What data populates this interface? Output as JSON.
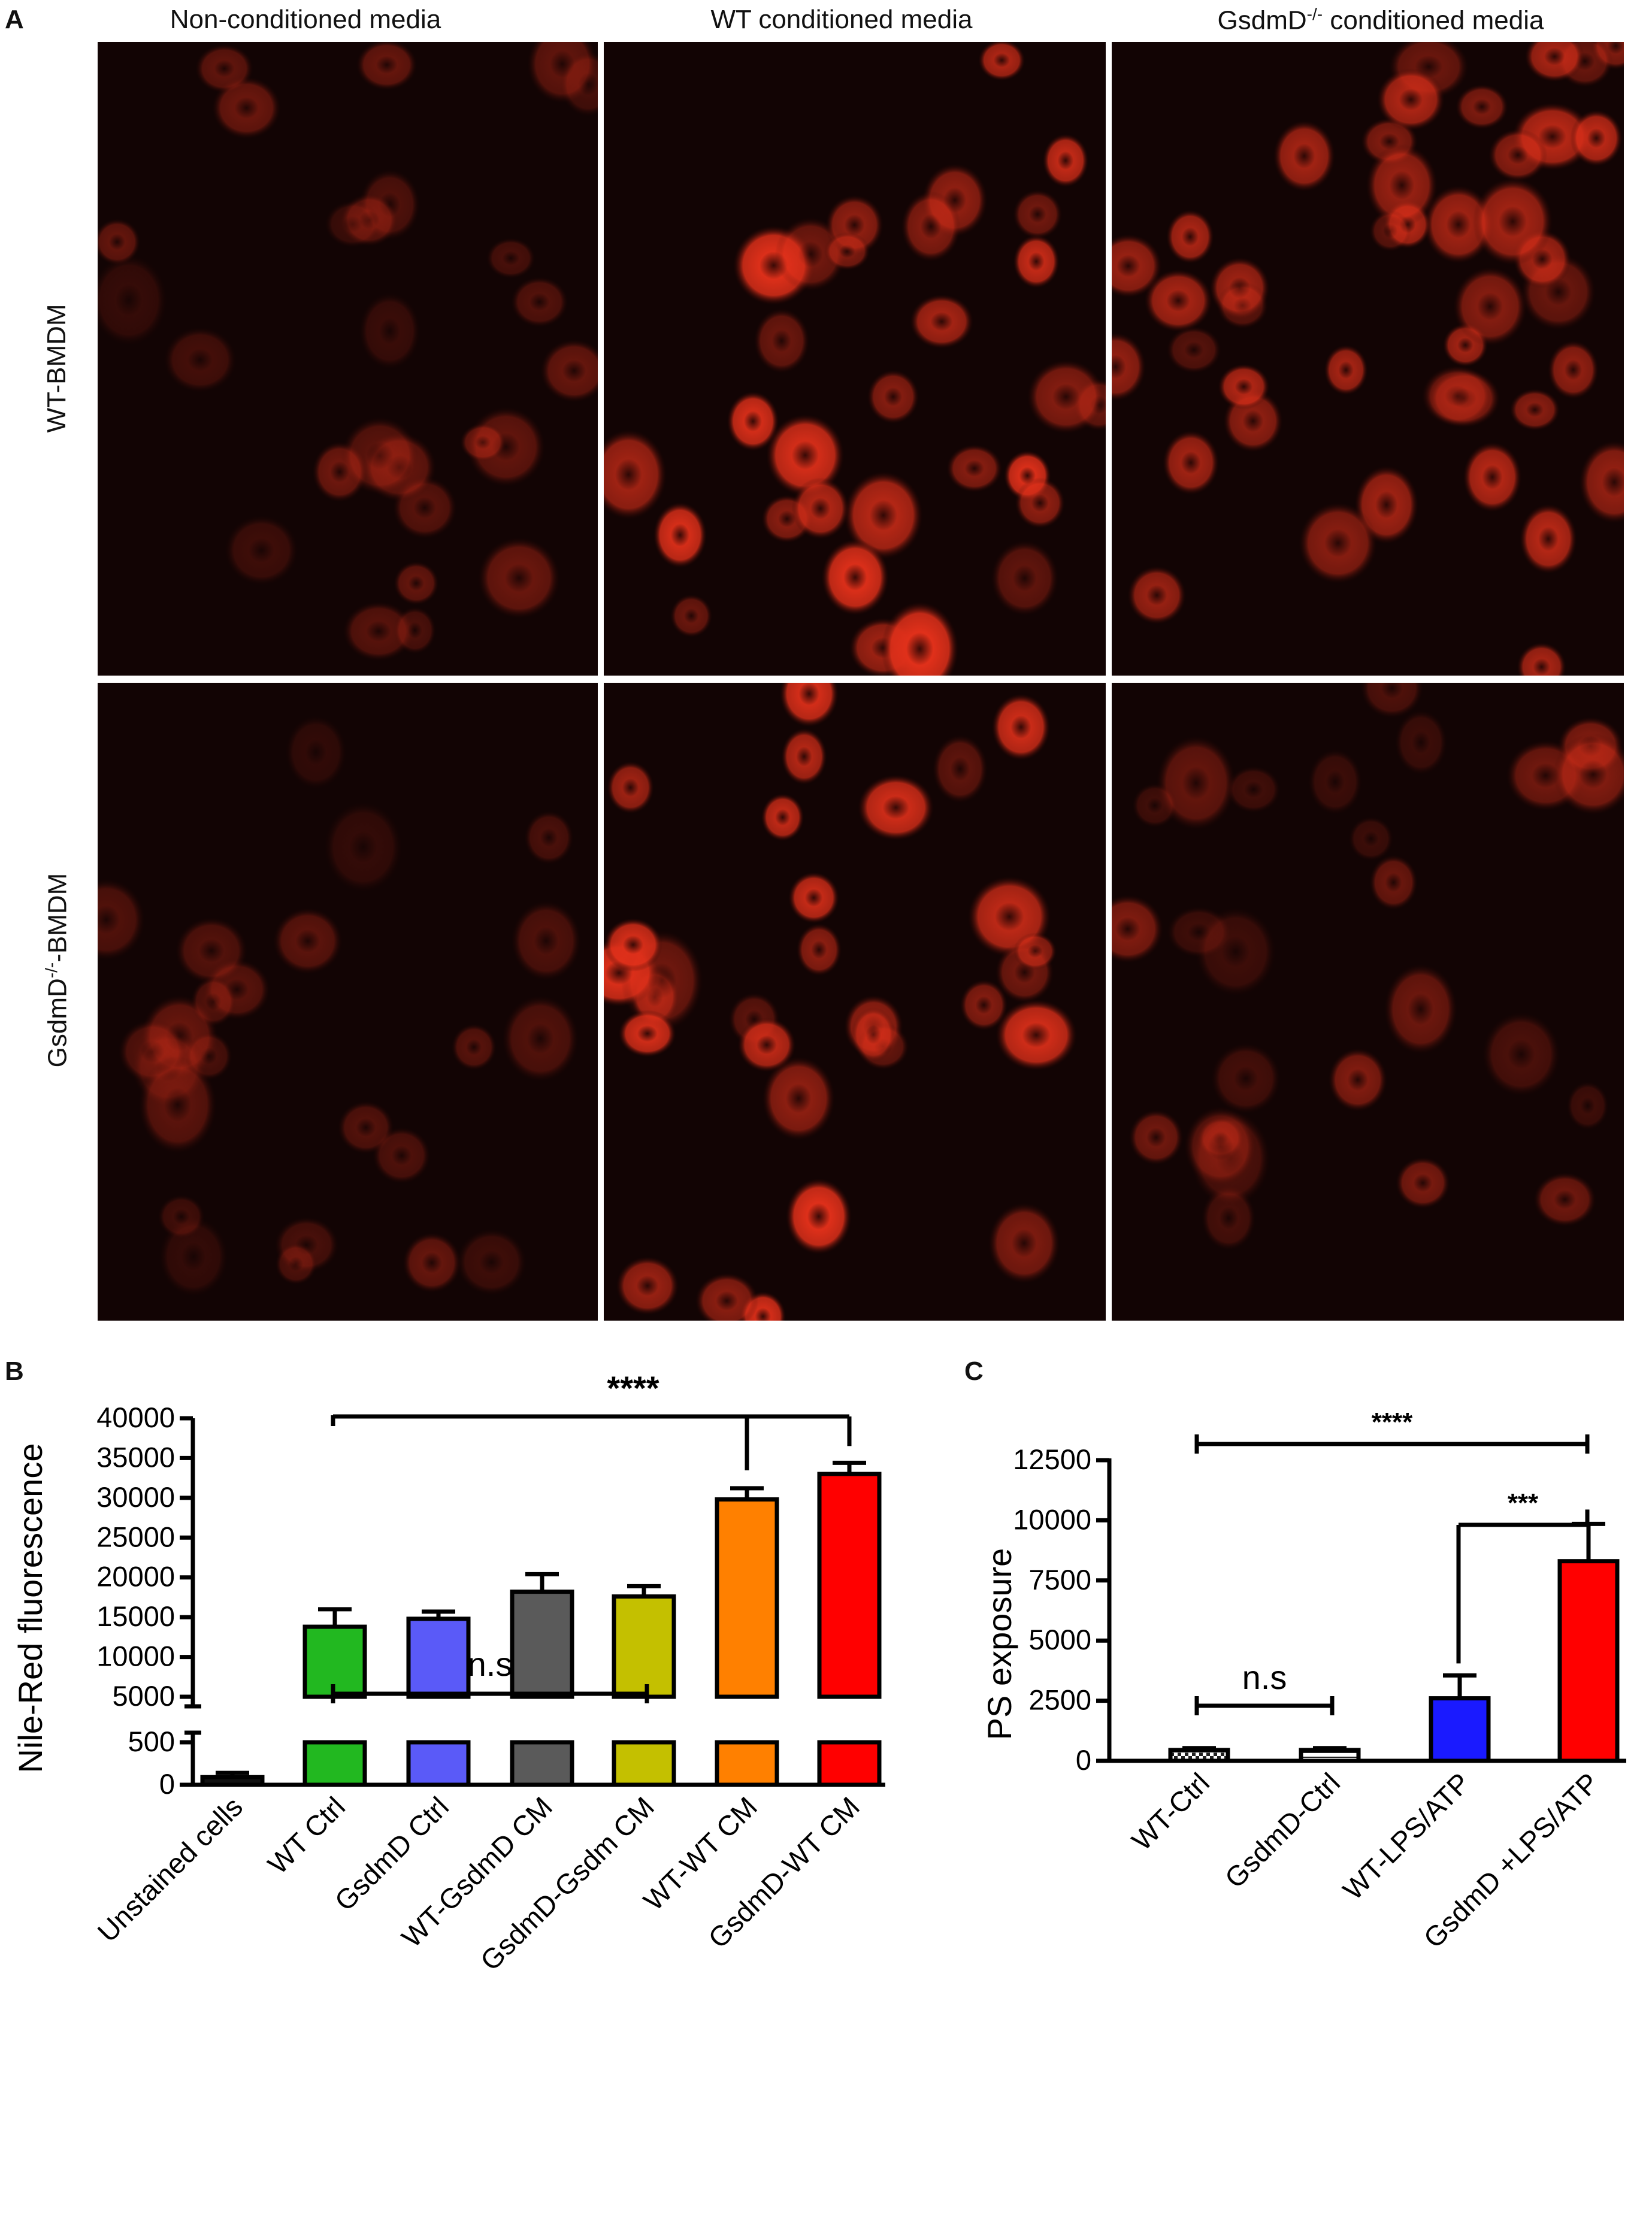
{
  "panel_a": {
    "letter": "A",
    "columns": [
      "Non-conditioned media",
      "WT conditioned media",
      "GsdmD",
      "-/-",
      " conditioned media"
    ],
    "rows": [
      "WT-BMDM",
      "GsdmD",
      "-/-",
      "-BMDM"
    ],
    "micrograph_color": "#e0301a"
  },
  "panel_b": {
    "letter": "B"
  },
  "panel_c": {
    "letter": "C"
  },
  "chart_data": [
    {
      "type": "bar",
      "panel": "B",
      "ylabel": "Nile-Red fluorescence",
      "y_axis_break": true,
      "ylim_lower": [
        0,
        500
      ],
      "ylim_upper": [
        5000,
        40000
      ],
      "yticks_lower": [
        0,
        500
      ],
      "yticks_upper": [
        5000,
        10000,
        15000,
        20000,
        25000,
        30000,
        35000,
        40000
      ],
      "categories": [
        "Unstained cells",
        "WT Ctrl",
        "GsdmD Ctrl",
        "WT-GsdmD CM",
        "GsdmD-Gsdm CM",
        "WT-WT CM",
        "GsdmD-WT CM"
      ],
      "values": [
        90,
        13800,
        14800,
        18200,
        17600,
        29800,
        33000
      ],
      "errors": [
        50,
        2200,
        900,
        2200,
        1300,
        1400,
        1400
      ],
      "colors": [
        "#111111",
        "#22b820",
        "#5a5af8",
        "#5a5a5a",
        "#c4c000",
        "#ff8000",
        "#ff0000"
      ],
      "annotations": [
        {
          "text": "n.s",
          "from": 1,
          "to": 4
        },
        {
          "text": "****",
          "from": 1,
          "to": 6,
          "also_to": 5
        }
      ]
    },
    {
      "type": "bar",
      "panel": "C",
      "ylabel": "PS exposure",
      "ylim": [
        0,
        12500
      ],
      "yticks": [
        0,
        2500,
        5000,
        7500,
        10000,
        12500
      ],
      "categories": [
        "WT-Ctrl",
        "GsdmD-Ctrl",
        "WT-LPS/ATP",
        "GsdmD +LPS/ATP"
      ],
      "values": [
        450,
        450,
        2600,
        8300
      ],
      "errors": [
        80,
        80,
        950,
        1550
      ],
      "colors": [
        "#cfcfcf",
        "#ffffff",
        "#1a1aff",
        "#ff0000"
      ],
      "patterns": [
        "checker",
        "hstripe",
        "none",
        "none"
      ],
      "annotations": [
        {
          "text": "n.s",
          "from": 0,
          "to": 1
        },
        {
          "text": "****",
          "from": 0,
          "to": 3
        },
        {
          "text": "***",
          "from": 2,
          "to": 3
        }
      ]
    }
  ]
}
